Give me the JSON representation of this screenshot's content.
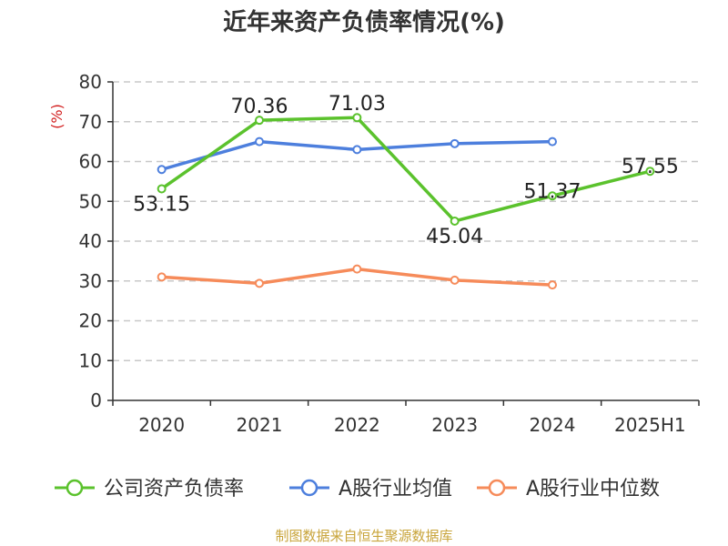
{
  "chart_data": {
    "type": "line",
    "title": "近年来资产负债率情况(%)",
    "ylabel": "(%)",
    "xlabel": "",
    "categories": [
      "2020",
      "2021",
      "2022",
      "2023",
      "2024",
      "2025H1"
    ],
    "ylim": [
      0,
      80
    ],
    "yticks": [
      0,
      10,
      20,
      30,
      40,
      50,
      60,
      70,
      80
    ],
    "grid": true,
    "legend_position": "bottom",
    "series": [
      {
        "name": "公司资产负债率",
        "color": "#5bc22d",
        "values": [
          53.15,
          70.36,
          71.03,
          45.04,
          51.37,
          57.55
        ],
        "show_labels": true
      },
      {
        "name": "A股行业均值",
        "color": "#4d7fdd",
        "values": [
          58.0,
          65.0,
          63.0,
          64.5,
          65.0,
          null
        ],
        "show_labels": false
      },
      {
        "name": "A股行业中位数",
        "color": "#f68b5a",
        "values": [
          31.0,
          29.4,
          33.0,
          30.2,
          29.0,
          null
        ],
        "show_labels": false
      }
    ]
  },
  "source_note": "制图数据来自恒生聚源数据库"
}
